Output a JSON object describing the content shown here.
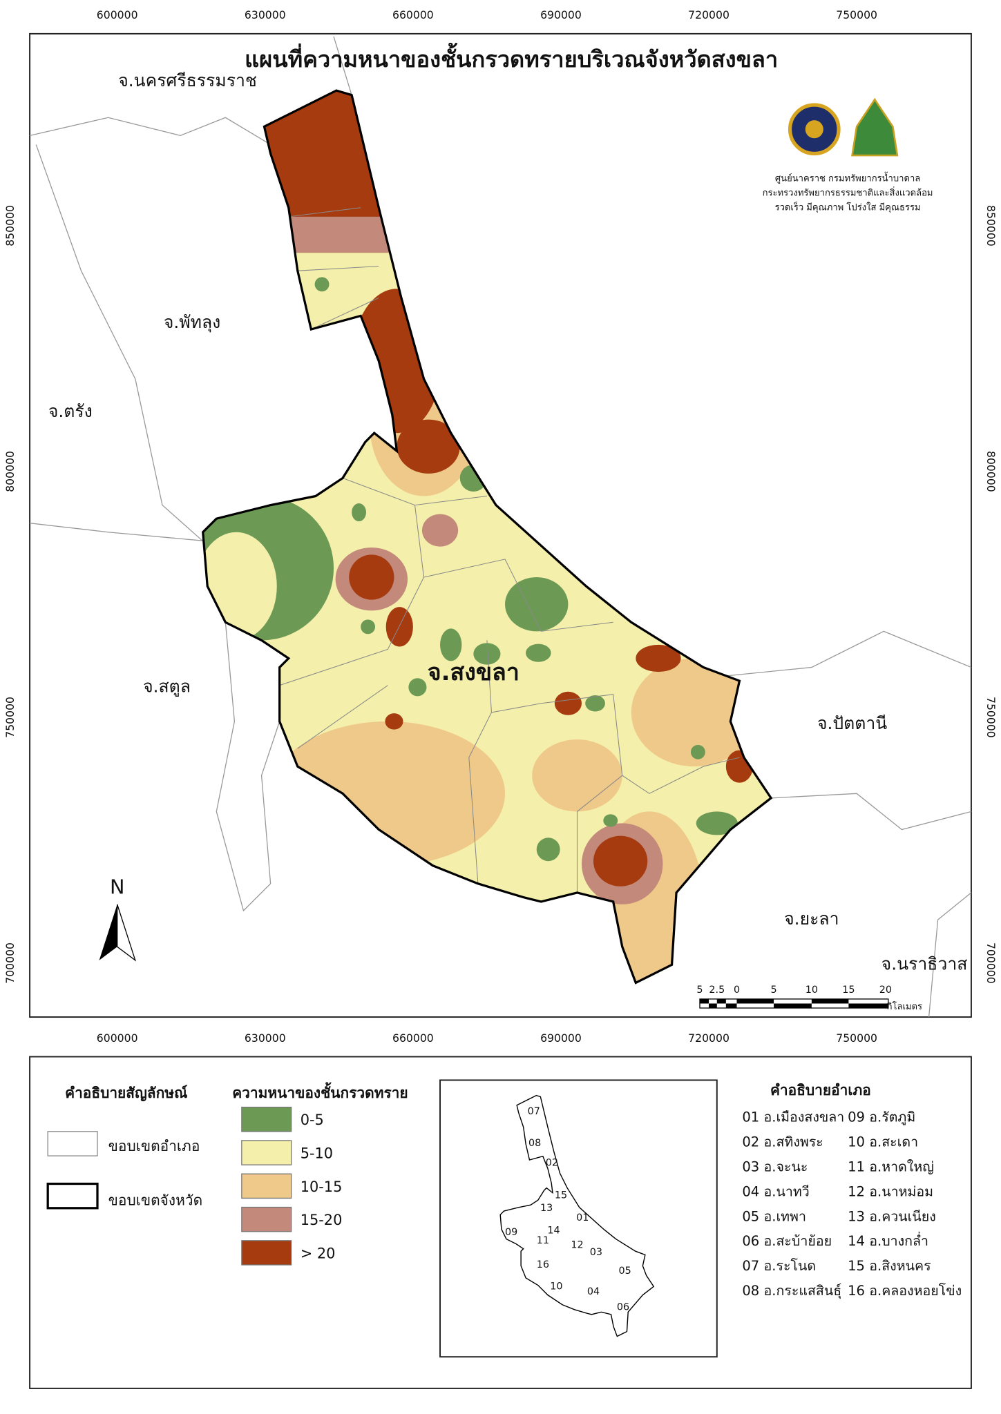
{
  "title": "แผนที่ความหนาของชั้นกรวดทรายบริเวณจังหวัดสงขลา",
  "grid": {
    "x_labels": [
      600000,
      630000,
      660000,
      690000,
      720000,
      750000
    ],
    "y_labels": [
      850000,
      800000,
      750000,
      700000
    ]
  },
  "main_label": "จ.สงขลา",
  "provinces": [
    "จ.นครศรีธรรมราช",
    "จ.พัทลุง",
    "จ.ตรัง",
    "จ.สตูล",
    "จ.ปัตตานี",
    "จ.ยะลา",
    "จ.นราธิวาส"
  ],
  "agency": [
    "ศูนย์นาคราช กรมทรัพยากรน้ำบาดาล",
    "กระทรวงทรัพยากรธรรมชาติและสิ่งแวดล้อม",
    "รวดเร็ว มีคุณภาพ โปร่งใส มีคุณธรรม"
  ],
  "north": "N",
  "scale_bar": {
    "labels": [
      "5",
      "2.5",
      "0",
      "5",
      "10",
      "15",
      "20"
    ],
    "unit": "กิโลเมตร"
  },
  "legend": {
    "title": "คำอธิบายสัญลักษณ์",
    "items": [
      "ขอบเขตอำเภอ",
      "ขอบเขตจังหวัด"
    ]
  },
  "thickness_legend": {
    "title": "ความหนาของชั้นกรวดทราย",
    "classes": [
      {
        "label": "0-5",
        "color": "#6c9a55"
      },
      {
        "label": "5-10",
        "color": "#f4efab"
      },
      {
        "label": "10-15",
        "color": "#efc98a"
      },
      {
        "label": "15-20",
        "color": "#c38a7c"
      },
      {
        "label": "> 20",
        "color": "#a63b0f"
      }
    ]
  },
  "district_list": {
    "title": "คำอธิบายอำเภอ",
    "items": [
      "01 อ.เมืองสงขลา",
      "02 อ.สทิงพระ",
      "03 อ.จะนะ",
      "04 อ.นาทวี",
      "05 อ.เทพา",
      "06 อ.สะบ้าย้อย",
      "07 อ.ระโนด",
      "08 อ.กระแสสินธุ์",
      "09 อ.รัตภูมิ",
      "10 อ.สะเดา",
      "11 อ.หาดใหญ่",
      "12 อ.นาหม่อม",
      "13 อ.ควนเนียง",
      "14 อ.บางกล่ำ",
      "15 อ.สิงหนคร",
      "16 อ.คลองหอยโข่ง"
    ]
  },
  "inset_labels": [
    "07",
    "08",
    "02",
    "15",
    "13",
    "14",
    "01",
    "09",
    "11",
    "12",
    "03",
    "16",
    "10",
    "04",
    "05",
    "06"
  ]
}
